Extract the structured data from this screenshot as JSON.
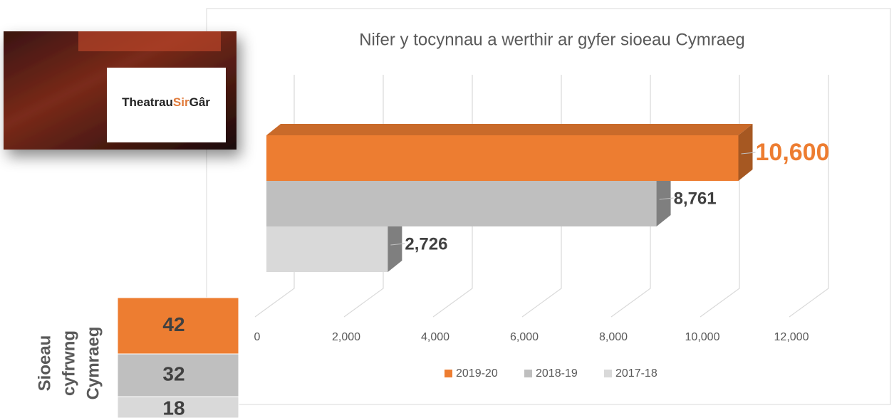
{
  "chart_data": {
    "type": "bar3d",
    "title": "Nifer y tocynnau a werthir ar gyfer sioeau Cymraeg",
    "categories": [
      null
    ],
    "series": [
      {
        "name": "2019-20",
        "color": "#ED7D31",
        "values": [
          10600
        ],
        "value_labels": [
          "10,600"
        ]
      },
      {
        "name": "2018-19",
        "color": "#BFBFBF",
        "values": [
          8761
        ],
        "value_labels": [
          "8,761"
        ]
      },
      {
        "name": "2017-18",
        "color": "#D9D9D9",
        "values": [
          2726
        ],
        "value_labels": [
          "2,726"
        ]
      }
    ],
    "xlim": [
      0,
      12000
    ],
    "xticks": [
      0,
      {
        "value": 2000,
        "label": "2,000"
      },
      {
        "value": 4000,
        "label": "4,000"
      },
      {
        "value": 6000,
        "label": "6,000"
      },
      {
        "value": 8000,
        "label": "8,000"
      },
      {
        "value": 10000,
        "label": "10,000"
      },
      {
        "value": 12000,
        "label": "12,000"
      }
    ],
    "grid": true,
    "legend": "bottom"
  },
  "table": {
    "header": [
      "Sioeau",
      "cyfrwng",
      "Cymraeg"
    ],
    "values": [
      42,
      32,
      18
    ],
    "colors": [
      "#ED7D31",
      "#BFBFBF",
      "#D9D9D9"
    ]
  },
  "logo": {
    "parts": [
      "Theatrau",
      "Sir",
      "Gâr"
    ]
  }
}
